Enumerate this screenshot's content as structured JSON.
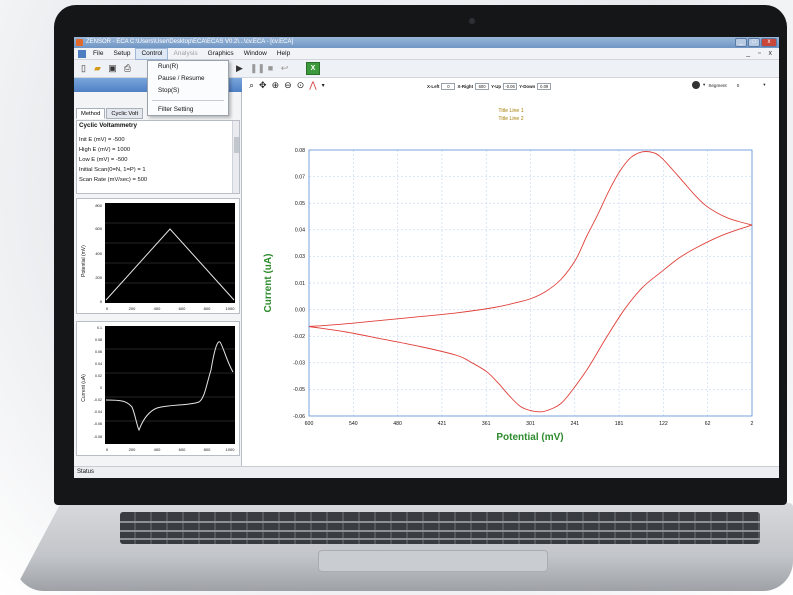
{
  "window": {
    "title": "ZENSOR - ECA  C:\\Users\\User\\Desktop\\ECA\\ECAS V0.2\\...\\cv.ECA - [cv.ECA]",
    "controls": [
      "_",
      "□",
      "x"
    ],
    "mdi_controls": "_ ▫ x"
  },
  "menu": {
    "items": [
      "File",
      "Setup",
      "Control",
      "Analysis",
      "Graphics",
      "Window",
      "Help"
    ],
    "active": "Control",
    "disabled": "Analysis"
  },
  "control_menu": {
    "items": [
      "Run(R)",
      "Pause / Resume",
      "Stop(S)",
      "Filter Setting"
    ]
  },
  "toolbar": {
    "icons": [
      "new-file-icon",
      "open-folder-icon",
      "save-icon",
      "print-icon",
      "play-icon",
      "pause-icon",
      "stop-icon",
      "return-icon",
      "excel-export-icon"
    ],
    "export_label": "X"
  },
  "left_panel": {
    "tabs": [
      "Method",
      "Cyclic Volt"
    ],
    "section_title": "Cyclic Voltammetry",
    "params": [
      "Init E (mV) = -500",
      "High E (mV) = 1000",
      "Low E (mV) = -500",
      "Initial Scan(0=N, 1=P) = 1",
      "Scan Rate (mV/sec) = 500"
    ],
    "potential_chart": {
      "ylabel": "Potential (mV)",
      "yticks": [
        "800",
        "600",
        "400",
        "200",
        "0"
      ],
      "xticks": [
        "0",
        "200",
        "400",
        "600",
        "800",
        "1000"
      ]
    },
    "current_chart": {
      "ylabel": "Current (uA)",
      "yticks": [
        "0.1",
        "0.08",
        "0.06",
        "0.04",
        "0.02",
        "0",
        "-0.02",
        "-0.04",
        "-0.06",
        "-0.08"
      ],
      "xticks": [
        "0",
        "200",
        "400",
        "600",
        "800",
        "1000"
      ]
    }
  },
  "plot_toolbar": {
    "icons": [
      "zoom-icon",
      "pan-icon",
      "zoom-in-icon",
      "zoom-out-icon",
      "zoom-fit-icon",
      "peak-icon"
    ],
    "x_left_label": "X-Left",
    "x_left": "0",
    "x_right_label": "X-Right",
    "x_right": "600",
    "y_up_label": "Y-Up",
    "y_up": "-0.06",
    "y_down_label": "Y-Down",
    "y_down": "0.09",
    "segment_label": "Segment",
    "segment_value": "0"
  },
  "chart_titles": [
    "Title Line 1",
    "Title Line 2"
  ],
  "chart_data": {
    "type": "line",
    "xlabel": "Potential (mV)",
    "ylabel": "Current (uA)",
    "x_tick_labels": [
      "600",
      "540",
      "480",
      "421",
      "361",
      "301",
      "241",
      "181",
      "122",
      "62",
      "2"
    ],
    "y_tick_labels": [
      "0.08",
      "0.07",
      "0.05",
      "0.04",
      "0.03",
      "0.01",
      "0.00",
      "-0.02",
      "-0.03",
      "-0.05",
      "-0.06"
    ],
    "xlim": [
      600,
      2
    ],
    "ylim": [
      -0.0644,
      0.0825
    ],
    "grid": true,
    "color": "#e0403a",
    "series": [
      {
        "x": [
          600,
          550,
          500,
          450,
          400,
          350,
          320,
          300,
          280,
          260,
          240,
          225,
          210,
          195,
          180,
          165,
          150,
          135,
          125,
          110,
          95,
          80,
          65,
          50,
          35,
          20,
          2
        ],
        "y": [
          -0.015,
          -0.0135,
          -0.0115,
          -0.0095,
          -0.0074,
          -0.0045,
          -0.0018,
          0.0005,
          0.0045,
          0.011,
          0.022,
          0.035,
          0.047,
          0.06,
          0.071,
          0.0785,
          0.0815,
          0.081,
          0.0785,
          0.072,
          0.065,
          0.058,
          0.052,
          0.048,
          0.045,
          0.043,
          0.041
        ]
      },
      {
        "x": [
          2,
          25,
          50,
          75,
          100,
          125,
          150,
          175,
          200,
          225,
          250,
          260,
          270,
          285,
          300,
          315,
          330,
          345,
          360,
          380,
          400,
          450,
          500,
          550,
          600
        ],
        "y": [
          0.041,
          0.038,
          0.034,
          0.029,
          0.023,
          0.015,
          0.0065,
          -0.006,
          -0.022,
          -0.039,
          -0.053,
          -0.0575,
          -0.06,
          -0.062,
          -0.0615,
          -0.059,
          -0.053,
          -0.046,
          -0.04,
          -0.035,
          -0.031,
          -0.026,
          -0.022,
          -0.018,
          -0.015
        ]
      }
    ]
  },
  "status": "Status"
}
